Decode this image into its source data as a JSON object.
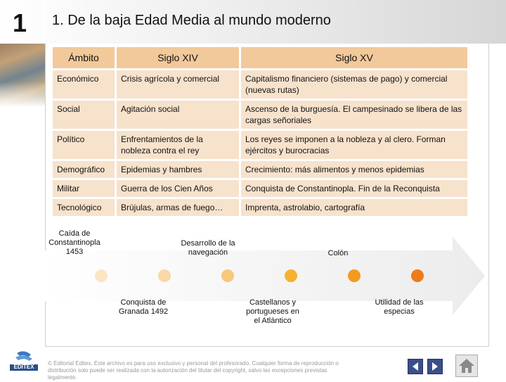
{
  "header": {
    "unit_number": "1",
    "title": "1. De la baja Edad Media al mundo moderno"
  },
  "table": {
    "headers": [
      "Ámbito",
      "Siglo XIV",
      "Siglo XV"
    ],
    "rows": [
      [
        "Económico",
        "Crisis agrícola y comercial",
        "Capitalismo financiero (sistemas de pago) y comercial (nuevas rutas)"
      ],
      [
        "Social",
        "Agitación social",
        "Ascenso de la burguesía. El campesinado se libera de las cargas señoriales"
      ],
      [
        "Político",
        "Enfrentamientos de la nobleza contra el rey",
        "Los reyes se imponen a la nobleza y al clero. Forman ejércitos y burocracias"
      ],
      [
        "Demográfico",
        "Epidemias y hambres",
        "Crecimiento: más alimentos y menos epidemias"
      ],
      [
        "Militar",
        "Guerra de los Cien Años",
        "Conquista de Constantinopla. Fin de la Reconquista"
      ],
      [
        "Tecnológico",
        "Brújulas, armas de fuego…",
        "Imprenta, astrolabio, cartografía"
      ]
    ]
  },
  "timeline": {
    "top_labels": [
      "Caída de Constantinopla 1453",
      "Desarrollo de la navegación",
      "Colón"
    ],
    "bottom_labels": [
      "Conquista de Granada 1492",
      "Castellanos y portugueses en el Atlántico",
      "Utilidad de las especias"
    ],
    "dot_colors": [
      "#fbe6c4",
      "#fad7a6",
      "#f8c77e",
      "#f5b130",
      "#f39a20",
      "#ee7a1e"
    ]
  },
  "footer": {
    "logo_text": "EDITEX",
    "copyright": "© Editorial Editex. Este archivo es para uso exclusivo y personal del profesorado. Cualquier forma de reproducción o distribución solo puede ser realizada con la autorización del titular del copyright, salvo las excepciones previstas legalmente."
  },
  "colors": {
    "header_cell": "#f2c99b",
    "body_cell": "#f7e2cc",
    "accent": "#f39a20"
  }
}
